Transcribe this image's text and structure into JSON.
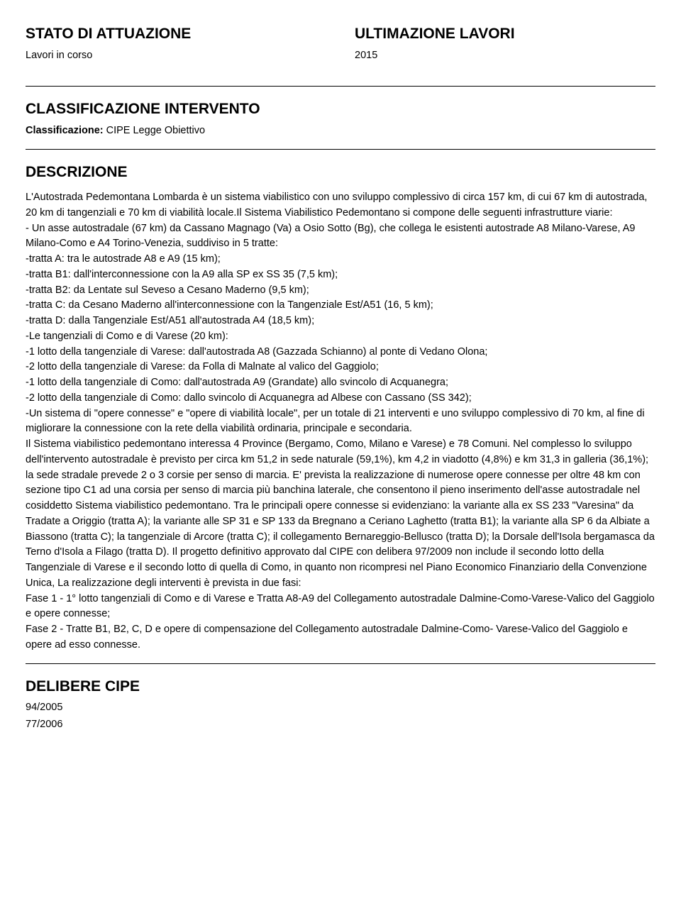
{
  "header": {
    "left_title": "STATO DI ATTUAZIONE",
    "right_title": "ULTIMAZIONE LAVORI",
    "left_sub": "Lavori in corso",
    "right_sub": "2015"
  },
  "classificazione": {
    "title": "CLASSIFICAZIONE INTERVENTO",
    "label": "Classificazione:",
    "value": "CIPE Legge Obiettivo"
  },
  "descrizione": {
    "title": "DESCRIZIONE",
    "body": "L'Autostrada Pedemontana Lombarda è un sistema viabilistico con uno sviluppo complessivo di circa 157 km, di cui 67 km di autostrada, 20 km di tangenziali e 70 km di viabilità locale.Il Sistema Viabilistico Pedemontano si compone delle seguenti infrastrutture viarie:\n - Un asse autostradale (67 km) da Cassano Magnago (Va) a Osio Sotto (Bg), che collega le esistenti autostrade A8 Milano-Varese, A9 Milano-Como e A4 Torino-Venezia, suddiviso in 5 tratte:\n-tratta A: tra le autostrade A8 e A9 (15 km);\n-tratta B1: dall'interconnessione con la A9 alla SP ex SS 35 (7,5 km);\n-tratta B2: da Lentate sul Seveso a Cesano Maderno (9,5 km);\n-tratta C: da Cesano Maderno all'interconnessione con la Tangenziale Est/A51 (16, 5 km);\n-tratta D: dalla Tangenziale Est/A51 all'autostrada A4 (18,5 km);\n  -Le tangenziali di Como e di Varese (20 km):\n-1 lotto della tangenziale di Varese: dall'autostrada A8 (Gazzada Schianno) al ponte di Vedano Olona;\n-2 lotto della tangenziale di Varese: da Folla di Malnate al valico del Gaggiolo;\n-1 lotto della tangenziale di Como: dall'autostrada A9 (Grandate) allo svincolo di Acquanegra;\n-2 lotto della tangenziale di Como: dallo svincolo di Acquanegra ad Albese con Cassano (SS 342);\n    -Un sistema di \"opere connesse\" e \"opere di viabilità locale\", per un totale di 21 interventi e uno sviluppo complessivo di 70 km, al fine di migliorare la connessione con la rete della viabilità ordinaria, principale e secondaria.\nIl Sistema viabilistico pedemontano interessa 4 Province (Bergamo, Como, Milano e Varese) e 78 Comuni. Nel complesso lo sviluppo dell'intervento autostradale è previsto per circa km 51,2 in sede naturale (59,1%), km 4,2 in viadotto (4,8%) e km 31,3 in galleria (36,1%); la sede stradale prevede 2 o 3 corsie per senso di marcia. E' prevista la realizzazione di numerose opere connesse per oltre 48 km con sezione tipo C1 ad una corsia per senso di marcia più banchina laterale, che consentono il pieno inserimento dell'asse autostradale nel cosiddetto Sistema viabilistico pedemontano. Tra le principali opere connesse si evidenziano: la variante alla ex SS 233 \"Varesina\" da Tradate a Origgio (tratta A); la variante alle SP 31 e SP 133 da Bregnano a Ceriano Laghetto (tratta B1); la variante alla SP 6 da Albiate a Biassono (tratta C); la tangenziale di Arcore (tratta C); il collegamento Bernareggio-Bellusco (tratta D); la Dorsale dell'Isola bergamasca da Terno d'Isola a Filago (tratta D). Il progetto definitivo approvato dal CIPE con delibera 97/2009 non include il secondo lotto della Tangenziale di Varese e il secondo lotto di quella di Como, in quanto non ricompresi nel Piano Economico Finanziario della Convenzione Unica, La realizzazione degli interventi è prevista in due fasi:\nFase 1 - 1° lotto tangenziali di Como e di Varese e Tratta A8-A9 del Collegamento autostradale Dalmine-Como-Varese-Valico del Gaggiolo e opere connesse;\nFase 2 - Tratte B1, B2, C, D e opere di compensazione del Collegamento autostradale Dalmine-Como- Varese-Valico del Gaggiolo e opere ad esso connesse."
  },
  "delibere": {
    "title": "DELIBERE CIPE",
    "items": [
      "94/2005",
      "77/2006"
    ]
  }
}
